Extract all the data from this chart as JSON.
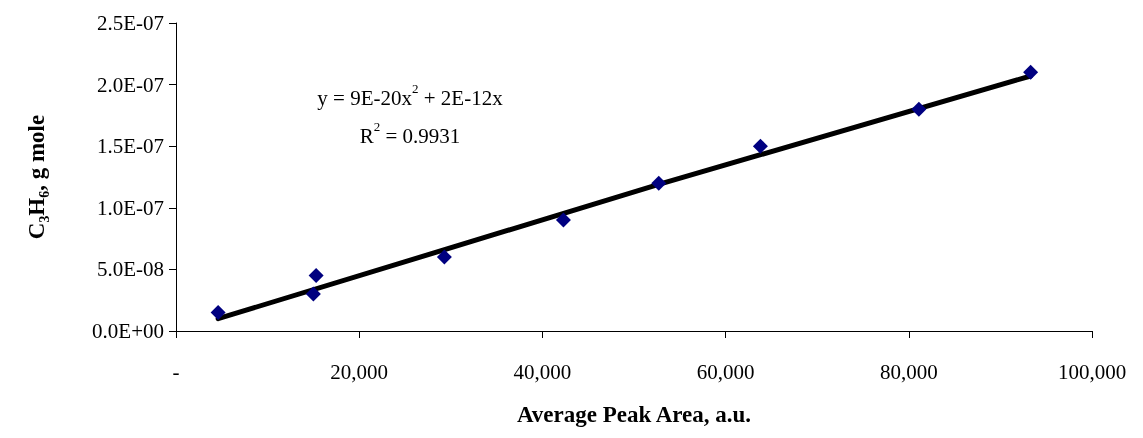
{
  "chart_data": {
    "type": "scatter",
    "xlabel": "Average Peak Area, a.u.",
    "ylabel": "C₃H₆, g mole",
    "annotations": [
      "y = 9E-20x$^{2}$ + 2E-12x",
      "R$^{2}$ = 0.9931"
    ],
    "xlim": [
      0,
      100000
    ],
    "xticks": [
      {
        "value": 0,
        "label": "-"
      },
      {
        "value": 20000,
        "label": "20,000"
      },
      {
        "value": 40000,
        "label": "40,000"
      },
      {
        "value": 60000,
        "label": "60,000"
      },
      {
        "value": 80000,
        "label": "80,000"
      },
      {
        "value": 100000,
        "label": "100,000"
      }
    ],
    "ylim": [
      0,
      2.5e-07
    ],
    "yticks": [
      {
        "value": 0,
        "label": "0.0E+00"
      },
      {
        "value": 5e-08,
        "label": "5.0E-08"
      },
      {
        "value": 1e-07,
        "label": "1.0E-07"
      },
      {
        "value": 1.5e-07,
        "label": "1.5E-07"
      },
      {
        "value": 2e-07,
        "label": "2.0E-07"
      },
      {
        "value": 2.5e-07,
        "label": "2.5E-07"
      }
    ],
    "marker": "diamond",
    "series": [
      {
        "color": "#000080",
        "x": [
          4600,
          15300,
          15000,
          29300,
          42300,
          52700,
          63800,
          81100,
          93300
        ],
        "values": [
          1.5e-08,
          4.5e-08,
          3e-08,
          6e-08,
          9e-08,
          1.2e-07,
          1.5e-07,
          1.8e-07,
          2.1e-07
        ]
      },
      {
        "type": "line",
        "color": "#000000",
        "marker": "none",
        "x": [
          4600,
          52700,
          93300
        ],
        "values": [
          1e-08,
          1.19e-07,
          2.07e-07
        ]
      }
    ]
  }
}
